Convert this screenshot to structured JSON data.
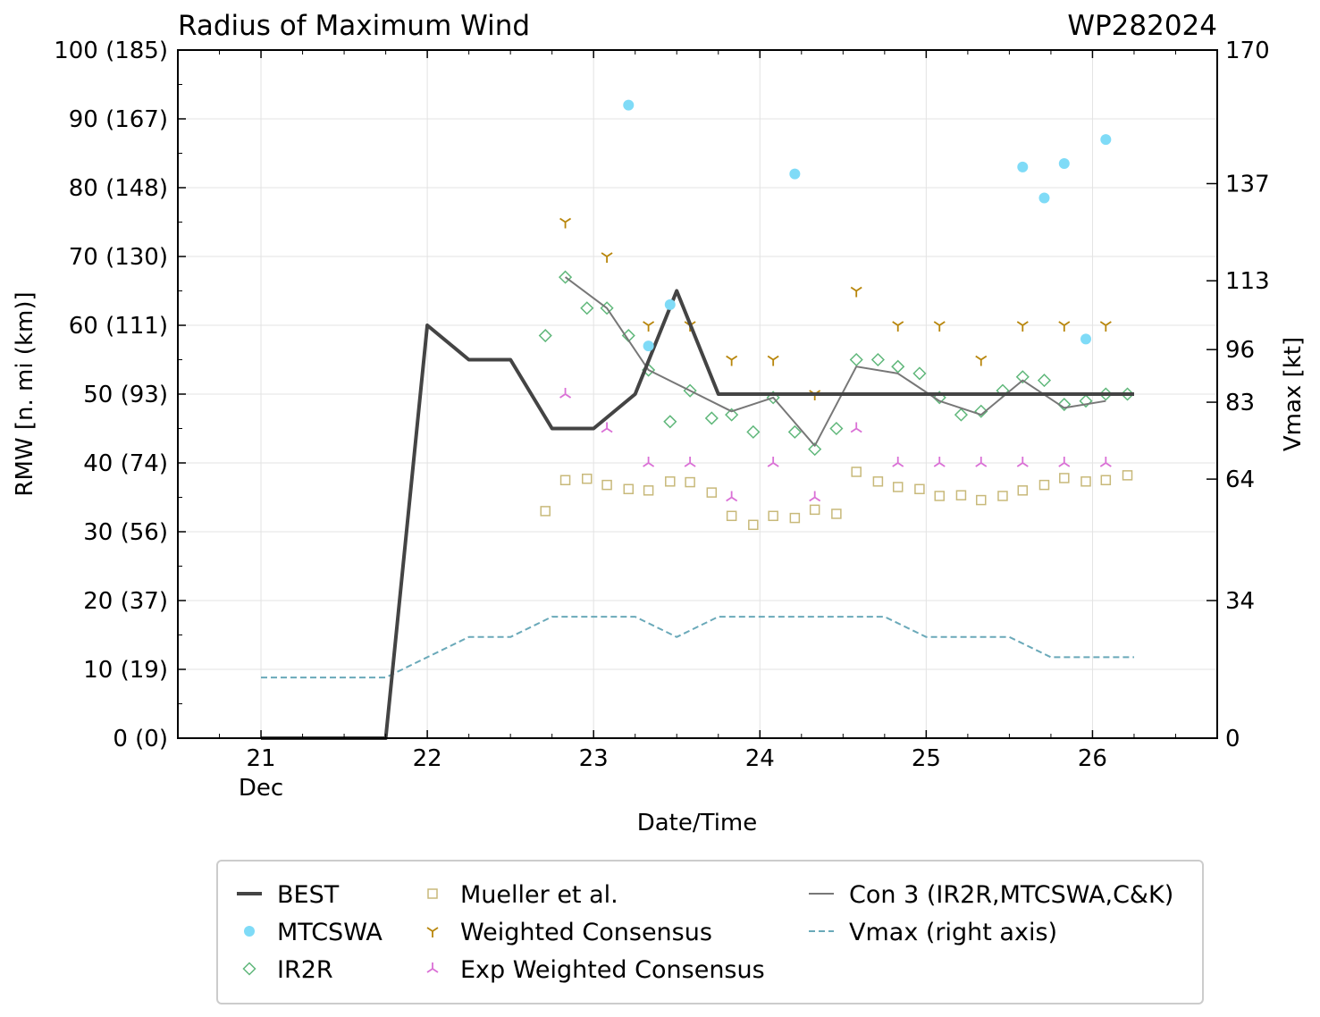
{
  "chart_data": {
    "type": "line",
    "title": "Radius of Maximum Wind",
    "storm_id": "WP282024",
    "xlabel": "Date/Time",
    "ylabel": "RMW [n. mi (km)]",
    "y2label": "Vmax [kt]",
    "ylim": [
      0,
      100
    ],
    "xlim": [
      20.5,
      26.75
    ],
    "x_ticks": [
      {
        "value": 21,
        "label": "21",
        "sublabel": "Dec"
      },
      {
        "value": 22,
        "label": "22",
        "sublabel": ""
      },
      {
        "value": 23,
        "label": "23",
        "sublabel": ""
      },
      {
        "value": 24,
        "label": "24",
        "sublabel": ""
      },
      {
        "value": 25,
        "label": "25",
        "sublabel": ""
      },
      {
        "value": 26,
        "label": "26",
        "sublabel": ""
      }
    ],
    "y_ticks": [
      {
        "value": 0,
        "label": "0 (0)"
      },
      {
        "value": 10,
        "label": "10 (19)"
      },
      {
        "value": 20,
        "label": "20 (37)"
      },
      {
        "value": 30,
        "label": "30 (56)"
      },
      {
        "value": 40,
        "label": "40 (74)"
      },
      {
        "value": 50,
        "label": "50 (93)"
      },
      {
        "value": 60,
        "label": "60 (111)"
      },
      {
        "value": 70,
        "label": "70 (130)"
      },
      {
        "value": 80,
        "label": "80 (148)"
      },
      {
        "value": 90,
        "label": "90 (167)"
      },
      {
        "value": 100,
        "label": "100 (185)"
      }
    ],
    "y2_ticks": [
      {
        "value": 0,
        "label": "0"
      },
      {
        "value": 34,
        "label": "34"
      },
      {
        "value": 64,
        "label": "64"
      },
      {
        "value": 83,
        "label": "83"
      },
      {
        "value": 96,
        "label": "96"
      },
      {
        "value": 113,
        "label": "113"
      },
      {
        "value": 137,
        "label": "137"
      },
      {
        "value": 170,
        "label": "170"
      }
    ],
    "y2lim": [
      0,
      170
    ],
    "series": [
      {
        "name": "BEST",
        "color": "#444444",
        "style": "thick-line",
        "x": [
          21.0,
          21.75,
          22.0,
          22.25,
          22.5,
          22.75,
          23.0,
          23.25,
          23.5,
          23.75,
          24.0,
          24.25,
          24.5,
          24.75,
          25.0,
          25.25,
          25.5,
          25.75,
          26.0,
          26.25
        ],
        "y": [
          0,
          0,
          60,
          55,
          55,
          45,
          45,
          50,
          65,
          50,
          50,
          50,
          50,
          50,
          50,
          50,
          50,
          50,
          50,
          50
        ]
      },
      {
        "name": "MTCSWA",
        "color": "#7fdbf7",
        "style": "circle",
        "x": [
          23.21,
          23.33,
          23.46,
          24.21,
          25.58,
          25.71,
          25.83,
          25.96,
          26.08
        ],
        "y": [
          92,
          57,
          63,
          82,
          83,
          78.5,
          83.5,
          58,
          87
        ]
      },
      {
        "name": "IR2R",
        "color": "#5fb77a",
        "style": "diamond",
        "x": [
          22.71,
          22.83,
          22.96,
          23.08,
          23.21,
          23.33,
          23.46,
          23.58,
          23.71,
          23.83,
          23.96,
          24.08,
          24.21,
          24.33,
          24.46,
          24.58,
          24.71,
          24.83,
          24.96,
          25.08,
          25.21,
          25.33,
          25.46,
          25.58,
          25.71,
          25.83,
          25.96,
          26.08,
          26.21
        ],
        "y": [
          58.5,
          67,
          62.5,
          62.5,
          58.5,
          53.5,
          46,
          50.5,
          46.5,
          47,
          44.5,
          49.5,
          44.5,
          42,
          45,
          55,
          55,
          54,
          53,
          49.5,
          47,
          47.5,
          50.5,
          52.5,
          52,
          48.5,
          49,
          50,
          50
        ]
      },
      {
        "name": "Mueller et al.",
        "color": "#c8b97a",
        "style": "square",
        "x": [
          22.71,
          22.83,
          22.96,
          23.08,
          23.21,
          23.33,
          23.46,
          23.58,
          23.71,
          23.83,
          23.96,
          24.08,
          24.21,
          24.33,
          24.46,
          24.58,
          24.71,
          24.83,
          24.96,
          25.08,
          25.21,
          25.33,
          25.46,
          25.58,
          25.71,
          25.83,
          25.96,
          26.08,
          26.21
        ],
        "y": [
          33,
          37.5,
          37.7,
          36.8,
          36.2,
          36,
          37.3,
          37.2,
          35.7,
          32.3,
          31,
          32.3,
          32,
          33.2,
          32.6,
          38.7,
          37.3,
          36.5,
          36.2,
          35.2,
          35.3,
          34.6,
          35.2,
          36,
          36.8,
          37.8,
          37.3,
          37.5,
          38.2
        ]
      },
      {
        "name": "Weighted Consensus",
        "color": "#b8860b",
        "style": "tri-down",
        "x": [
          22.83,
          23.08,
          23.33,
          23.58,
          23.83,
          24.08,
          24.33,
          24.58,
          24.83,
          25.08,
          25.33,
          25.58,
          25.83,
          26.08
        ],
        "y": [
          75,
          70,
          60,
          60,
          55,
          55,
          50,
          65,
          60,
          60,
          55,
          60,
          60,
          60
        ]
      },
      {
        "name": "Exp Weighted Consensus",
        "color": "#da70d6",
        "style": "tri-up",
        "x": [
          22.83,
          23.08,
          23.33,
          23.58,
          23.83,
          24.08,
          24.33,
          24.58,
          24.83,
          25.08,
          25.33,
          25.58,
          25.83,
          26.08
        ],
        "y": [
          50,
          45,
          40,
          40,
          35,
          40,
          35,
          45,
          40,
          40,
          40,
          40,
          40,
          40
        ]
      },
      {
        "name": "Con 3 (IR2R,MTCSWA,C&K)",
        "color": "#777777",
        "style": "thin-line",
        "x": [
          22.83,
          23.08,
          23.33,
          23.58,
          23.83,
          24.08,
          24.33,
          24.58,
          24.83,
          25.08,
          25.33,
          25.58,
          25.83,
          26.08
        ],
        "y": [
          67,
          62.5,
          53.5,
          50.5,
          47.5,
          49.5,
          42.5,
          54,
          53,
          49,
          47,
          52,
          48,
          49
        ]
      },
      {
        "name": "Vmax (right axis)",
        "color": "#6aa9b9",
        "style": "dashed",
        "axis": "right",
        "x": [
          21.0,
          21.75,
          22.0,
          22.25,
          22.5,
          22.75,
          23.0,
          23.25,
          23.5,
          23.75,
          24.0,
          24.25,
          24.5,
          24.75,
          25.0,
          25.25,
          25.5,
          25.75,
          26.0,
          26.25
        ],
        "y": [
          15,
          15,
          20,
          25,
          25,
          30,
          30,
          30,
          25,
          30,
          30,
          30,
          30,
          30,
          25,
          25,
          25,
          20,
          20,
          20
        ]
      }
    ],
    "legend": {
      "placement": "bottom",
      "columns": [
        [
          "BEST",
          "MTCSWA",
          "IR2R"
        ],
        [
          "Mueller et al.",
          "Weighted Consensus",
          "Exp Weighted Consensus"
        ],
        [
          "Con 3 (IR2R,MTCSWA,C&K)",
          "Vmax (right axis)"
        ]
      ]
    },
    "grid": true
  }
}
